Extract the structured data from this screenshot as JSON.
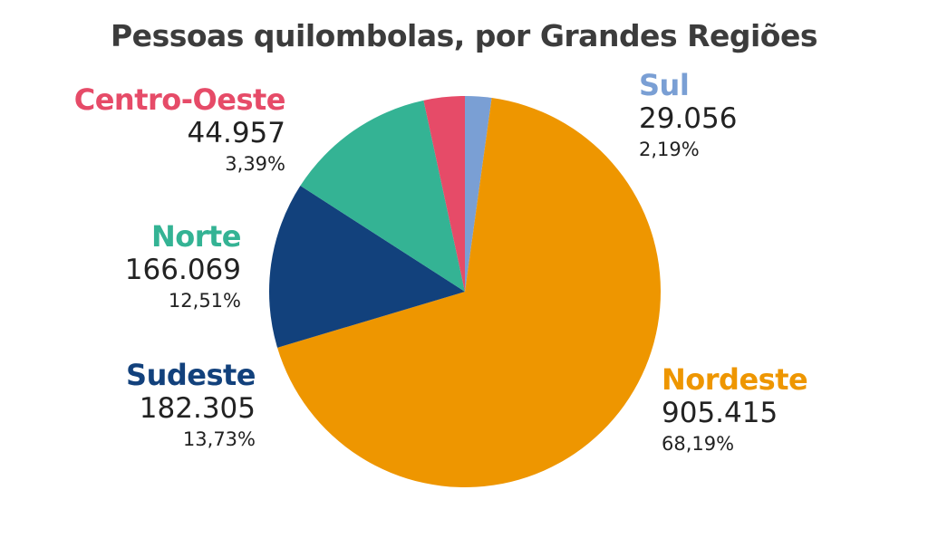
{
  "chart_data": {
    "type": "pie",
    "title": "Pessoas quilombolas, por Grandes Regiões",
    "slices": [
      {
        "name": "Sul",
        "value": 29056,
        "value_label": "29.056",
        "percent_label": "2,19%",
        "color": "#7a9fd4"
      },
      {
        "name": "Nordeste",
        "value": 905415,
        "value_label": "905.415",
        "percent_label": "68,19%",
        "color": "#ee9600"
      },
      {
        "name": "Sudeste",
        "value": 182305,
        "value_label": "182.305",
        "percent_label": "13,73%",
        "color": "#12417c"
      },
      {
        "name": "Norte",
        "value": 166069,
        "value_label": "166.069",
        "percent_label": "12,51%",
        "color": "#34b394"
      },
      {
        "name": "Centro-Oeste",
        "value": 44957,
        "value_label": "44.957",
        "percent_label": "3,39%",
        "color": "#e64b68"
      }
    ]
  }
}
